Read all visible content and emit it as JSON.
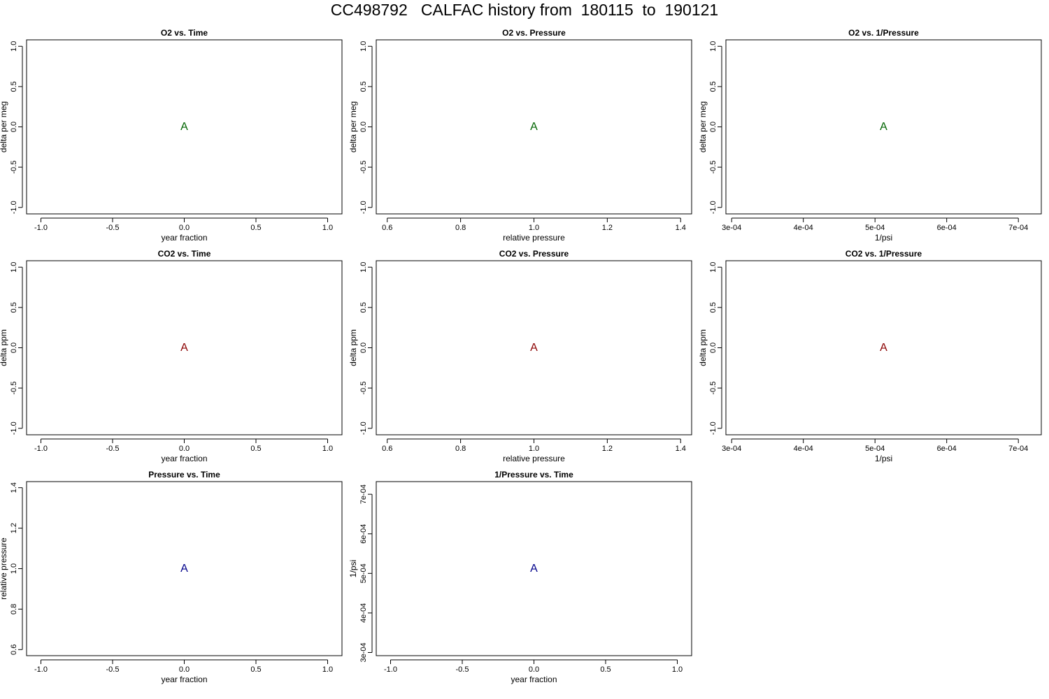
{
  "page": {
    "title": "CC498792   CALFAC history from  180115  to  190121"
  },
  "colors": {
    "o2": "#006400",
    "co2": "#8b0000",
    "pressure": "#00008b",
    "axis": "#000000"
  },
  "chart_data": [
    {
      "type": "scatter",
      "title": "O2 vs. Time",
      "xlabel": "year fraction",
      "ylabel": "delta per meg",
      "xlim": [
        -1.1,
        1.1
      ],
      "ylim": [
        -1.08,
        1.08
      ],
      "xticks": [
        -1.0,
        -0.5,
        0.0,
        0.5,
        1.0
      ],
      "xtick_labels": [
        "-1.0",
        "-0.5",
        "0.0",
        "0.5",
        "1.0"
      ],
      "yticks": [
        -1.0,
        -0.5,
        0.0,
        0.5,
        1.0
      ],
      "ytick_labels": [
        "-1.0",
        "-0.5",
        "0.0",
        "0.5",
        "1.0"
      ],
      "series": [
        {
          "marker": "A",
          "color": "#006400",
          "points": [
            {
              "x": 0.0,
              "y": 0.0
            }
          ]
        }
      ]
    },
    {
      "type": "scatter",
      "title": "O2 vs. Pressure",
      "xlabel": "relative pressure",
      "ylabel": "delta per meg",
      "xlim": [
        0.57,
        1.43
      ],
      "ylim": [
        -1.08,
        1.08
      ],
      "xticks": [
        0.6,
        0.8,
        1.0,
        1.2,
        1.4
      ],
      "xtick_labels": [
        "0.6",
        "0.8",
        "1.0",
        "1.2",
        "1.4"
      ],
      "yticks": [
        -1.0,
        -0.5,
        0.0,
        0.5,
        1.0
      ],
      "ytick_labels": [
        "-1.0",
        "-0.5",
        "0.0",
        "0.5",
        "1.0"
      ],
      "series": [
        {
          "marker": "A",
          "color": "#006400",
          "points": [
            {
              "x": 1.0,
              "y": 0.0
            }
          ]
        }
      ]
    },
    {
      "type": "scatter",
      "title": "O2 vs. 1/Pressure",
      "xlabel": "1/psi",
      "ylabel": "delta per meg",
      "xlim": [
        0.000292,
        0.000732
      ],
      "ylim": [
        -1.08,
        1.08
      ],
      "xticks": [
        0.0003,
        0.0004,
        0.0005,
        0.0006,
        0.0007
      ],
      "xtick_labels": [
        "3e-04",
        "4e-04",
        "5e-04",
        "6e-04",
        "7e-04"
      ],
      "yticks": [
        -1.0,
        -0.5,
        0.0,
        0.5,
        1.0
      ],
      "ytick_labels": [
        "-1.0",
        "-0.5",
        "0.0",
        "0.5",
        "1.0"
      ],
      "series": [
        {
          "marker": "A",
          "color": "#006400",
          "points": [
            {
              "x": 0.000512,
              "y": 0.0
            }
          ]
        }
      ]
    },
    {
      "type": "scatter",
      "title": "CO2 vs. Time",
      "xlabel": "year fraction",
      "ylabel": "delta ppm",
      "xlim": [
        -1.1,
        1.1
      ],
      "ylim": [
        -1.08,
        1.08
      ],
      "xticks": [
        -1.0,
        -0.5,
        0.0,
        0.5,
        1.0
      ],
      "xtick_labels": [
        "-1.0",
        "-0.5",
        "0.0",
        "0.5",
        "1.0"
      ],
      "yticks": [
        -1.0,
        -0.5,
        0.0,
        0.5,
        1.0
      ],
      "ytick_labels": [
        "-1.0",
        "-0.5",
        "0.0",
        "0.5",
        "1.0"
      ],
      "series": [
        {
          "marker": "A",
          "color": "#8b0000",
          "points": [
            {
              "x": 0.0,
              "y": 0.0
            }
          ]
        }
      ]
    },
    {
      "type": "scatter",
      "title": "CO2 vs. Pressure",
      "xlabel": "relative pressure",
      "ylabel": "delta ppm",
      "xlim": [
        0.57,
        1.43
      ],
      "ylim": [
        -1.08,
        1.08
      ],
      "xticks": [
        0.6,
        0.8,
        1.0,
        1.2,
        1.4
      ],
      "xtick_labels": [
        "0.6",
        "0.8",
        "1.0",
        "1.2",
        "1.4"
      ],
      "yticks": [
        -1.0,
        -0.5,
        0.0,
        0.5,
        1.0
      ],
      "ytick_labels": [
        "-1.0",
        "-0.5",
        "0.0",
        "0.5",
        "1.0"
      ],
      "series": [
        {
          "marker": "A",
          "color": "#8b0000",
          "points": [
            {
              "x": 1.0,
              "y": 0.0
            }
          ]
        }
      ]
    },
    {
      "type": "scatter",
      "title": "CO2 vs. 1/Pressure",
      "xlabel": "1/psi",
      "ylabel": "delta ppm",
      "xlim": [
        0.000292,
        0.000732
      ],
      "ylim": [
        -1.08,
        1.08
      ],
      "xticks": [
        0.0003,
        0.0004,
        0.0005,
        0.0006,
        0.0007
      ],
      "xtick_labels": [
        "3e-04",
        "4e-04",
        "5e-04",
        "6e-04",
        "7e-04"
      ],
      "yticks": [
        -1.0,
        -0.5,
        0.0,
        0.5,
        1.0
      ],
      "ytick_labels": [
        "-1.0",
        "-0.5",
        "0.0",
        "0.5",
        "1.0"
      ],
      "series": [
        {
          "marker": "A",
          "color": "#8b0000",
          "points": [
            {
              "x": 0.000512,
              "y": 0.0
            }
          ]
        }
      ]
    },
    {
      "type": "scatter",
      "title": "Pressure vs. Time",
      "xlabel": "year fraction",
      "ylabel": "relative pressure",
      "xlim": [
        -1.1,
        1.1
      ],
      "ylim": [
        0.57,
        1.43
      ],
      "xticks": [
        -1.0,
        -0.5,
        0.0,
        0.5,
        1.0
      ],
      "xtick_labels": [
        "-1.0",
        "-0.5",
        "0.0",
        "0.5",
        "1.0"
      ],
      "yticks": [
        0.6,
        0.8,
        1.0,
        1.2,
        1.4
      ],
      "ytick_labels": [
        "0.6",
        "0.8",
        "1.0",
        "1.2",
        "1.4"
      ],
      "series": [
        {
          "marker": "A",
          "color": "#00008b",
          "points": [
            {
              "x": 0.0,
              "y": 1.0
            }
          ]
        }
      ]
    },
    {
      "type": "scatter",
      "title": "1/Pressure vs. Time",
      "xlabel": "year fraction",
      "ylabel": "1/psi",
      "xlim": [
        -1.1,
        1.1
      ],
      "ylim": [
        0.000292,
        0.000732
      ],
      "xticks": [
        -1.0,
        -0.5,
        0.0,
        0.5,
        1.0
      ],
      "xtick_labels": [
        "-1.0",
        "-0.5",
        "0.0",
        "0.5",
        "1.0"
      ],
      "yticks": [
        0.0003,
        0.0004,
        0.0005,
        0.0006,
        0.0007
      ],
      "ytick_labels": [
        "3e-04",
        "4e-04",
        "5e-04",
        "6e-04",
        "7e-04"
      ],
      "series": [
        {
          "marker": "A",
          "color": "#00008b",
          "points": [
            {
              "x": 0.0,
              "y": 0.000512
            }
          ]
        }
      ]
    }
  ]
}
